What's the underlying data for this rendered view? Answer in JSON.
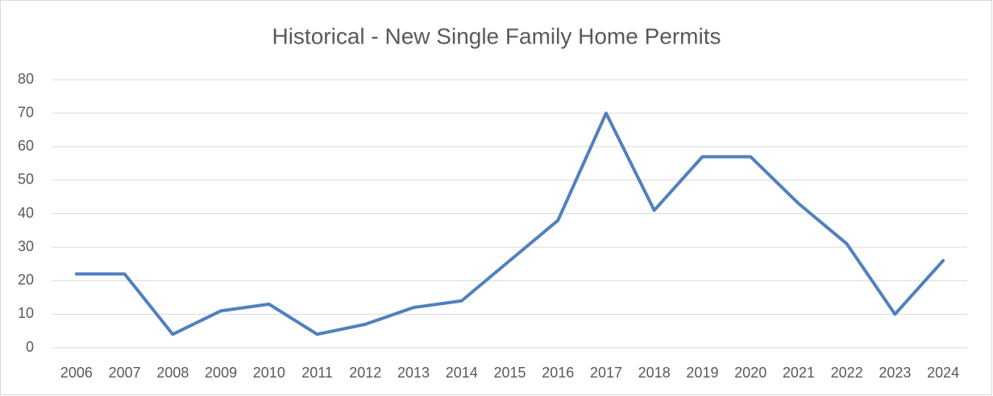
{
  "chart_data": {
    "type": "line",
    "title": "Historical - New Single Family Home Permits",
    "categories": [
      "2006",
      "2007",
      "2008",
      "2009",
      "2010",
      "2011",
      "2012",
      "2013",
      "2014",
      "2015",
      "2016",
      "2017",
      "2018",
      "2019",
      "2020",
      "2021",
      "2022",
      "2023",
      "2024"
    ],
    "values": [
      22,
      22,
      4,
      11,
      13,
      4,
      7,
      12,
      14,
      26,
      38,
      70,
      41,
      57,
      57,
      43,
      31,
      10,
      26
    ],
    "color": "#4f81bd",
    "ylim": [
      0,
      80
    ],
    "yticks": [
      0,
      10,
      20,
      30,
      40,
      50,
      60,
      70,
      80
    ],
    "grid": true
  }
}
